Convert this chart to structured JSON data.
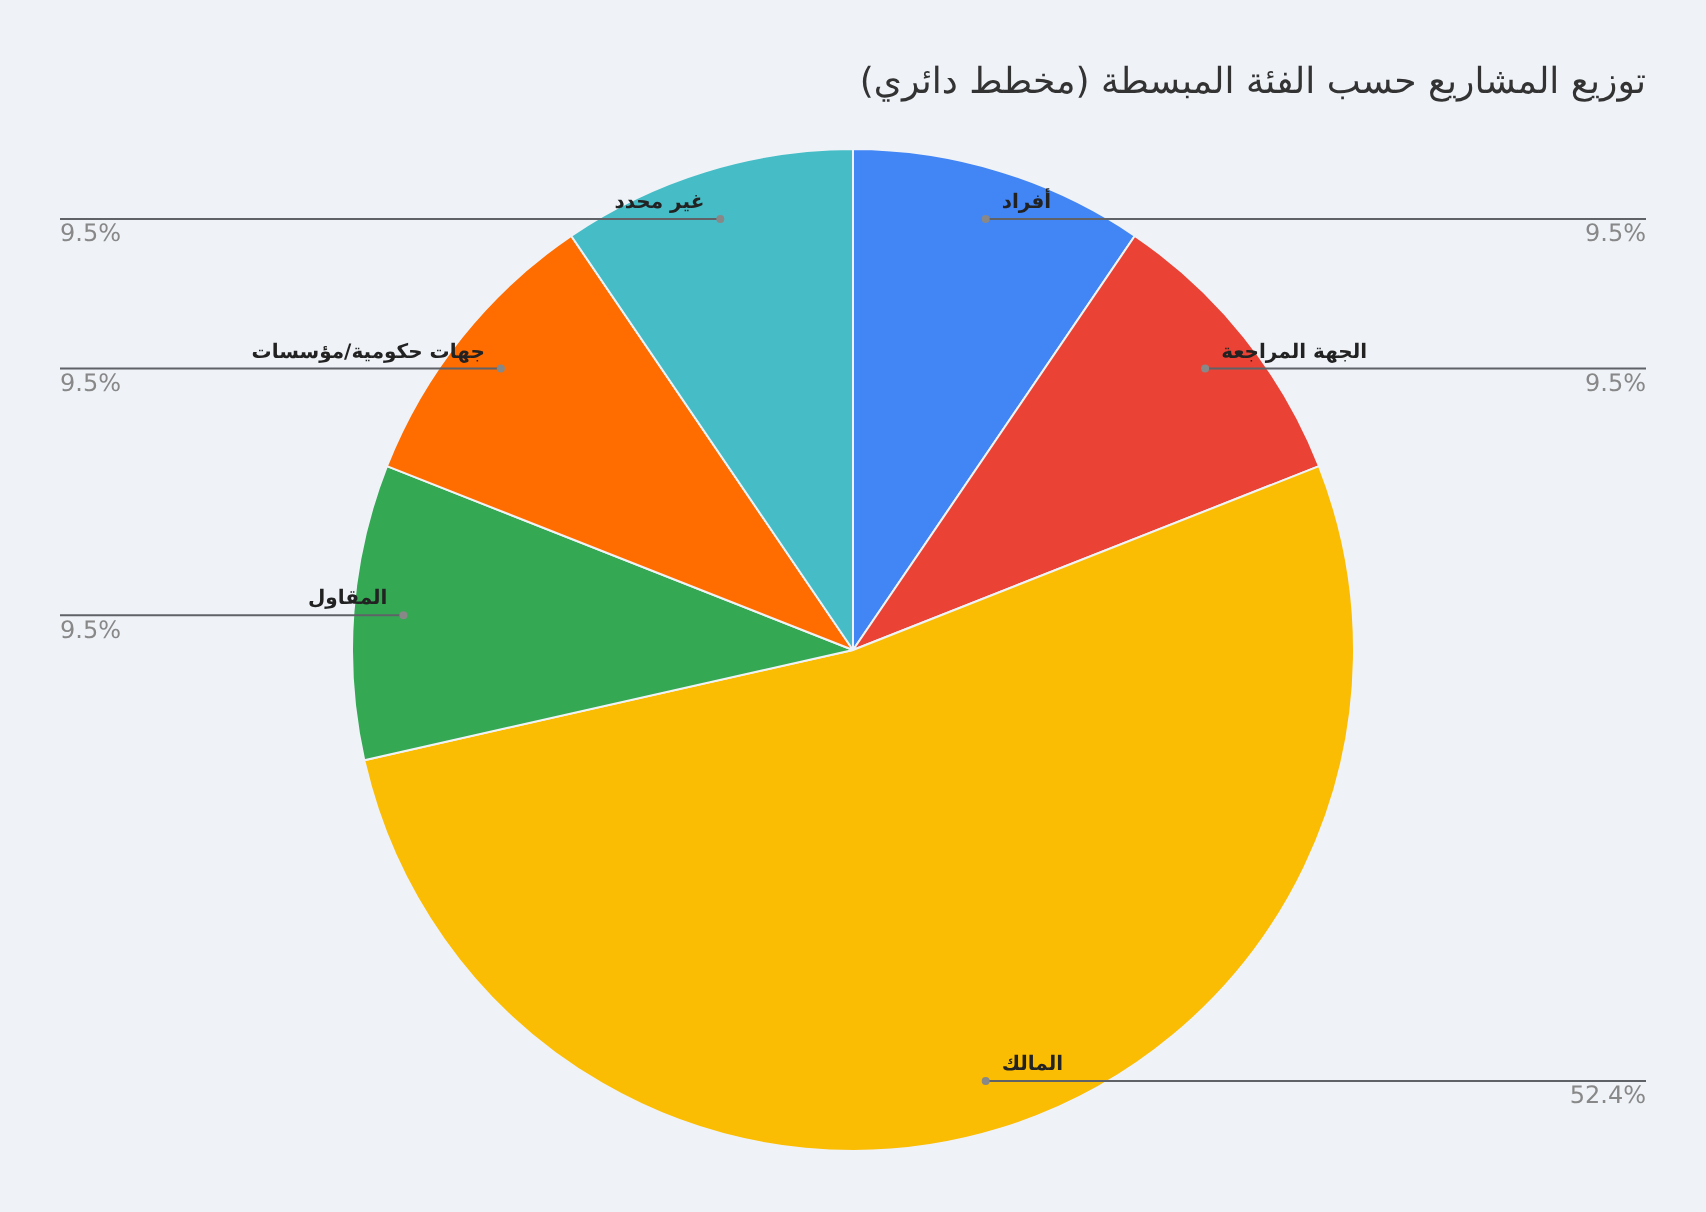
{
  "chart_data": {
    "type": "pie",
    "title": "توزيع المشاريع حسب الفئة المبسطة (مخطط دائري)",
    "categories": [
      "أفراد",
      "الجهة المراجعة",
      "المالك",
      "المقاول",
      "جهات حكومية/مؤسسات",
      "غير محدد"
    ],
    "values": [
      9.5,
      9.5,
      52.4,
      9.5,
      9.5,
      9.5
    ],
    "value_labels": [
      "9.5%",
      "9.5%",
      "52.4%",
      "9.5%",
      "9.5%",
      "9.5%"
    ],
    "colors": [
      "#4285f4",
      "#ea4335",
      "#fbbc04",
      "#34a853",
      "#ff6d01",
      "#46bdc6"
    ],
    "legend": false
  }
}
